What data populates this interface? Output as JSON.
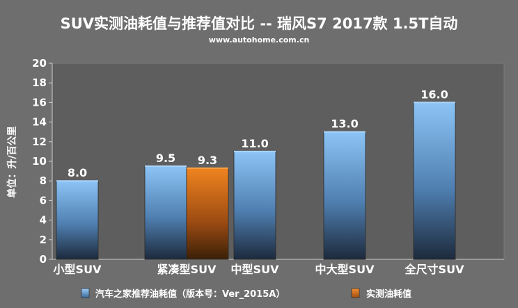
{
  "chart_data": {
    "type": "bar",
    "title": "SUV实测油耗值与推荐值对比 -- 瑞风S7 2017款 1.5T自动",
    "subtitle": "www.autohome.com.cn",
    "ylabel": "单位：升/百公里",
    "xlabel": "",
    "ylim": [
      0,
      20
    ],
    "yticks": [
      0,
      2,
      4,
      6,
      8,
      10,
      12,
      14,
      16,
      18,
      20
    ],
    "grid": false,
    "legend_position": "bottom",
    "categories": [
      "小型SUV",
      "紧凑型SUV",
      "中型SUV",
      "中大型SUV",
      "全尺寸SUV"
    ],
    "series": [
      {
        "name": "汽车之家推荐油耗值（版本号：Ver_2015A）",
        "color": "#7fb6ea",
        "values": [
          8.0,
          9.5,
          11.0,
          13.0,
          16.0
        ],
        "labels": [
          "8.0",
          "9.5",
          "11.0",
          "13.0",
          "16.0"
        ]
      },
      {
        "name": "实测油耗值",
        "color": "#e0731a",
        "values": [
          null,
          9.3,
          null,
          null,
          null
        ],
        "labels": [
          null,
          "9.3",
          null,
          null,
          null
        ]
      }
    ]
  }
}
